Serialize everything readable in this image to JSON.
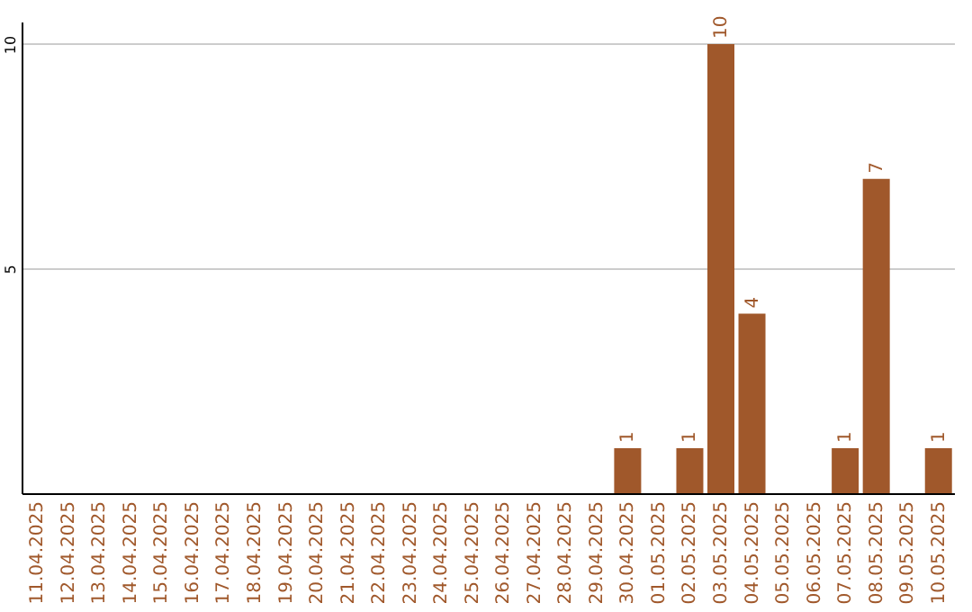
{
  "chart_data": {
    "type": "bar",
    "categories": [
      "11.04.2025",
      "12.04.2025",
      "13.04.2025",
      "14.04.2025",
      "15.04.2025",
      "16.04.2025",
      "17.04.2025",
      "18.04.2025",
      "19.04.2025",
      "20.04.2025",
      "21.04.2025",
      "22.04.2025",
      "23.04.2025",
      "24.04.2025",
      "25.04.2025",
      "26.04.2025",
      "27.04.2025",
      "28.04.2025",
      "29.04.2025",
      "30.04.2025",
      "01.05.2025",
      "02.05.2025",
      "03.05.2025",
      "04.05.2025",
      "05.05.2025",
      "06.05.2025",
      "07.05.2025",
      "08.05.2025",
      "09.05.2025",
      "10.05.2025"
    ],
    "values": [
      0,
      0,
      0,
      0,
      0,
      0,
      0,
      0,
      0,
      0,
      0,
      0,
      0,
      0,
      0,
      0,
      0,
      0,
      0,
      1,
      0,
      1,
      10,
      4,
      0,
      0,
      1,
      7,
      0,
      1
    ],
    "value_labels": [
      null,
      null,
      null,
      null,
      null,
      null,
      null,
      null,
      null,
      null,
      null,
      null,
      null,
      null,
      null,
      null,
      null,
      null,
      null,
      "1",
      null,
      "1",
      "10",
      "4",
      null,
      null,
      "1",
      "7",
      null,
      "1"
    ],
    "color": "#a0582b",
    "ylim": [
      0,
      10.5
    ],
    "yticks": [
      5,
      10
    ],
    "grid": "y"
  }
}
